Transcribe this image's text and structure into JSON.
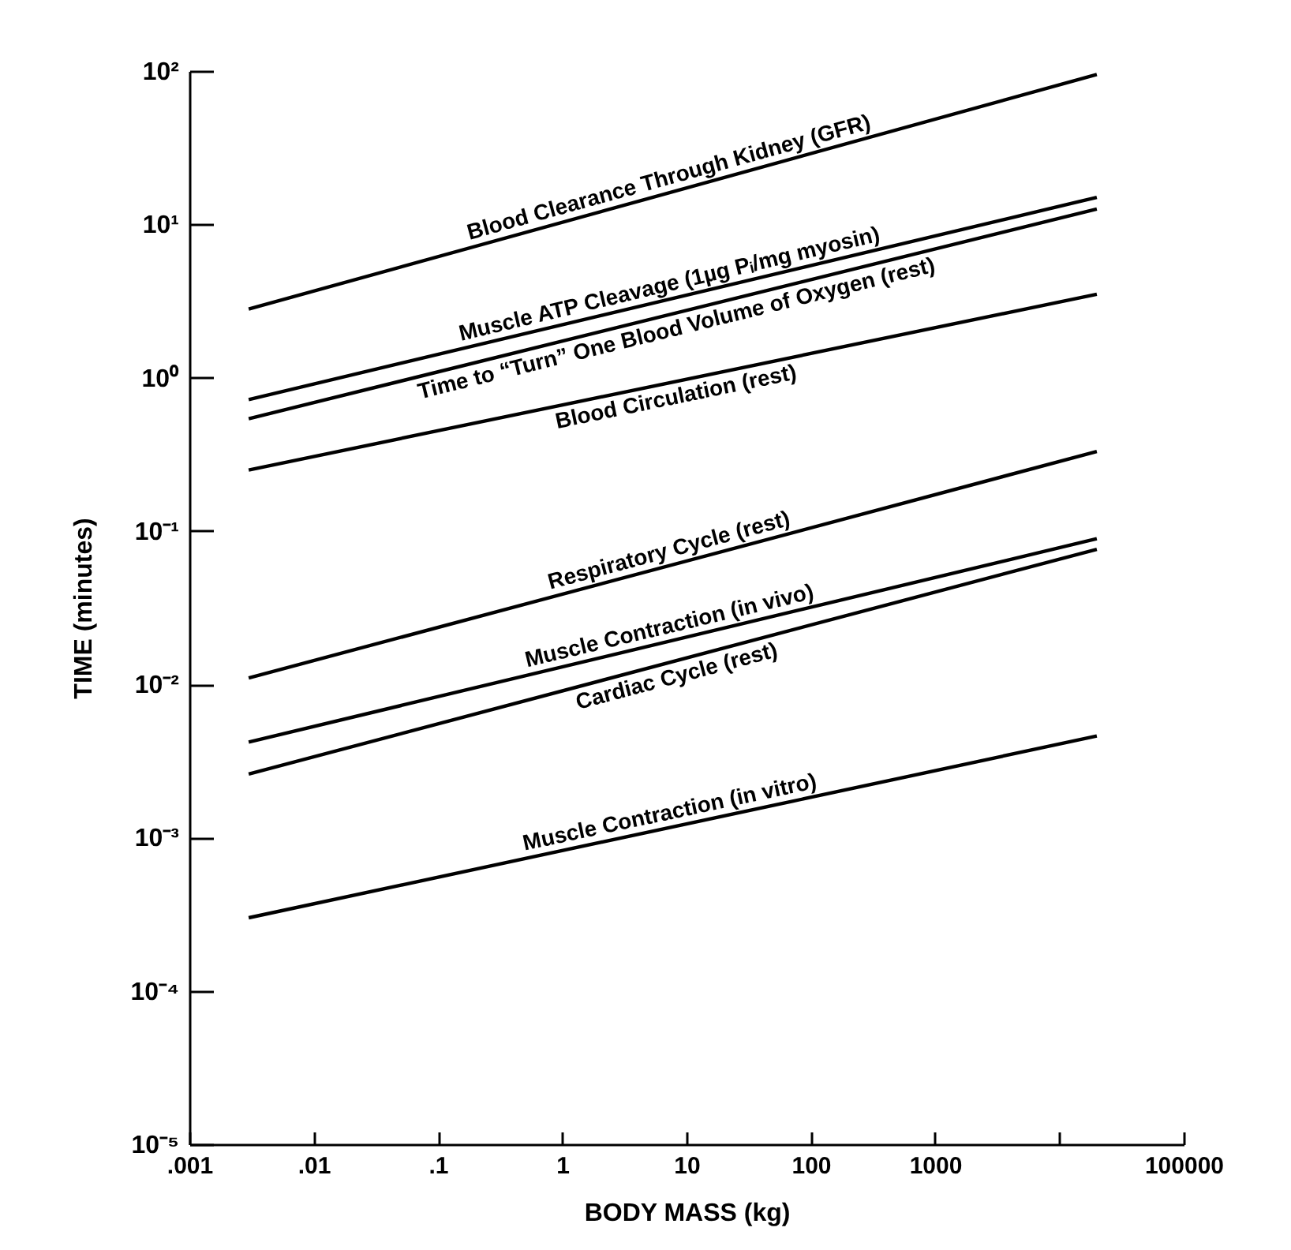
{
  "chart_data": {
    "type": "line",
    "xlabel": "BODY MASS (kg)",
    "ylabel": "TIME (minutes)",
    "log": "xy",
    "grid": false,
    "legend": false,
    "marker": "none",
    "line_style": "solid",
    "xlim": [
      0.001,
      100000
    ],
    "ylim": [
      1e-05,
      100
    ],
    "xticks": [
      {
        "value": 0.001,
        "label": ".001"
      },
      {
        "value": 0.01,
        "label": ".01"
      },
      {
        "value": 0.1,
        "label": ".1"
      },
      1,
      10,
      100,
      1000,
      {
        "value": 10000,
        "label": null
      },
      100000
    ],
    "yticks": [
      {
        "value": 1e-05,
        "label": "10⁻⁵"
      },
      {
        "value": 0.0001,
        "label": "10⁻⁴"
      },
      {
        "value": 0.001,
        "label": "10⁻³"
      },
      {
        "value": 0.01,
        "label": "10⁻²"
      },
      {
        "value": 0.1,
        "label": "10⁻¹"
      },
      {
        "value": 1,
        "label": "10⁰"
      },
      {
        "value": 10,
        "label": "10¹"
      },
      {
        "value": 100,
        "label": "10²"
      }
    ],
    "x": [
      0.003,
      20000
    ],
    "series": [
      {
        "name": "Blood Clearance Through Kidney (GFR)",
        "color": "#000000",
        "values": [
          2.8,
          95
        ]
      },
      {
        "name": "Muscle ATP Cleavage (1µg Pᵢ/mg myosin)",
        "color": "#000000",
        "values": [
          0.72,
          15
        ]
      },
      {
        "name": "Time to “Turn” One Blood Volume of Oxygen (rest)",
        "color": "#000000",
        "values": [
          0.54,
          12.6
        ]
      },
      {
        "name": "Blood Circulation (rest)",
        "color": "#000000",
        "values": [
          0.25,
          3.5
        ]
      },
      {
        "name": "Respiratory Cycle (rest)",
        "color": "#000000",
        "values": [
          0.011,
          0.33
        ]
      },
      {
        "name": "Muscle Contraction (in vivo)",
        "color": "#000000",
        "values": [
          0.0042,
          0.089
        ]
      },
      {
        "name": "Cardiac Cycle (rest)",
        "color": "#000000",
        "values": [
          0.0026,
          0.076
        ]
      },
      {
        "name": "Muscle Contraction (in vitro)",
        "color": "#000000",
        "values": [
          0.0003,
          0.0046
        ]
      }
    ]
  }
}
